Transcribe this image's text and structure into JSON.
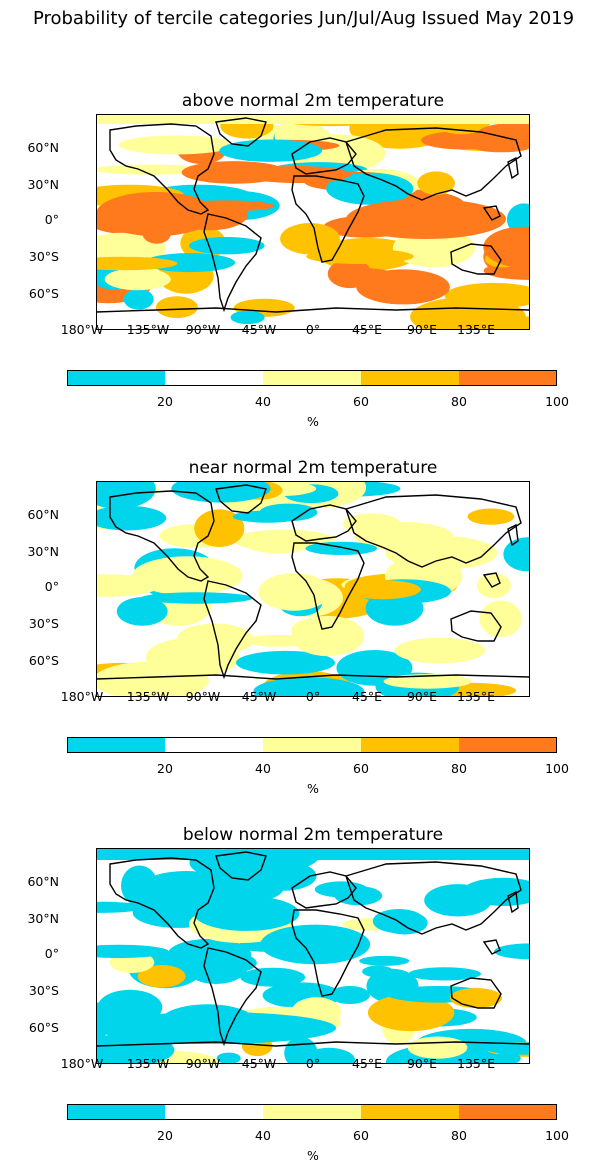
{
  "title": "Probability of tercile categories Jun/Jul/Aug Issued May 2019",
  "lon_labels": [
    "180°W",
    "135°W",
    "90°W",
    "45°W",
    "0°",
    "45°E",
    "90°E",
    "135°E"
  ],
  "lat_labels": [
    "60°N",
    "30°N",
    "0°",
    "30°S",
    "60°S"
  ],
  "colorbar": {
    "ticks": [
      "20",
      "40",
      "60",
      "80",
      "100"
    ],
    "unit": "%",
    "colors": [
      "#00d5ec",
      "#ffffff",
      "#ffff99",
      "#ffc200",
      "#ff7a1c"
    ],
    "bins": [
      [
        0,
        20
      ],
      [
        20,
        40
      ],
      [
        40,
        60
      ],
      [
        60,
        80
      ],
      [
        80,
        100
      ]
    ]
  },
  "panels": [
    {
      "title": "above normal 2m temperature",
      "dominant": "above"
    },
    {
      "title": "near normal 2m temperature",
      "dominant": "near"
    },
    {
      "title": "below normal 2m temperature",
      "dominant": "below"
    }
  ],
  "colors": {
    "land_outline": "#000000",
    "frame": "#000000",
    "background": "#ffffff"
  }
}
